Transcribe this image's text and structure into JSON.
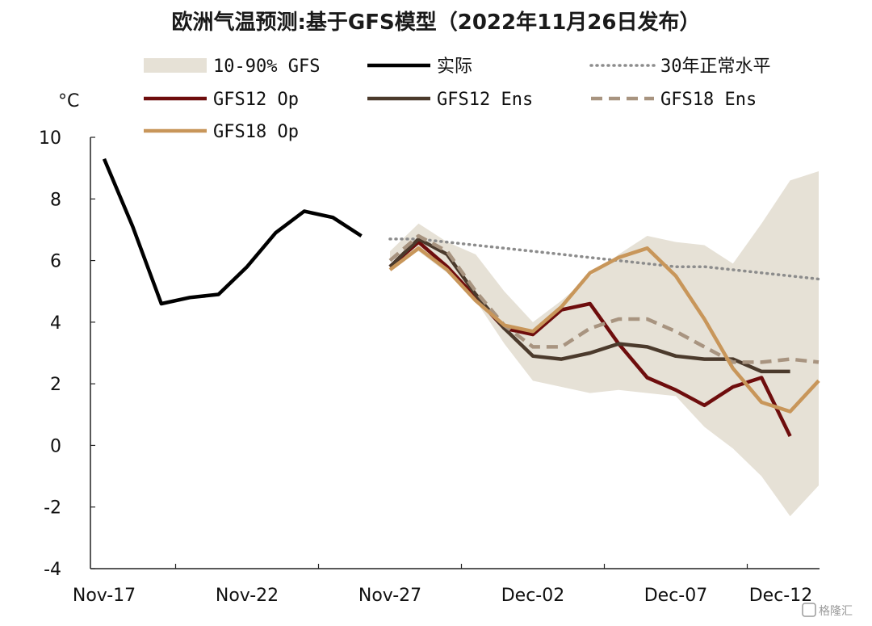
{
  "chart_data": {
    "type": "line",
    "title": "欧洲气温预测:基于GFS模型（2022年11月26日发布）",
    "ylabel": "°C",
    "ylim": [
      -4,
      10
    ],
    "yticks": [
      "10",
      "8",
      "6",
      "4",
      "2",
      "0",
      "-2",
      "-4"
    ],
    "xticks": [
      "Nov-17",
      "Nov-22",
      "Nov-27",
      "Dec-02",
      "Dec-07",
      "Dec-12"
    ],
    "xrange": [
      "2022-11-17",
      "2022-12-12"
    ],
    "grid": false,
    "legend_position": "top",
    "band": {
      "name": "10-90% GFS",
      "color": "#e6e1d6",
      "x": [
        "2022-11-27",
        "2022-11-28",
        "2022-11-29",
        "2022-11-30",
        "2022-12-01",
        "2022-12-02",
        "2022-12-03",
        "2022-12-04",
        "2022-12-05",
        "2022-12-06",
        "2022-12-07",
        "2022-12-08",
        "2022-12-09",
        "2022-12-10",
        "2022-12-11",
        "2022-12-12"
      ],
      "upper": [
        6.3,
        7.2,
        6.6,
        6.2,
        5.0,
        4.0,
        4.7,
        5.5,
        6.2,
        6.8,
        6.6,
        6.5,
        5.9,
        7.2,
        8.6,
        8.9
      ],
      "lower": [
        6.0,
        6.3,
        5.6,
        4.7,
        3.3,
        2.1,
        1.9,
        1.7,
        1.8,
        1.7,
        1.6,
        0.6,
        -0.1,
        -1.0,
        -2.3,
        -1.3
      ]
    },
    "series": [
      {
        "name": "实际",
        "color": "#000000",
        "style": "solid",
        "x": [
          "2022-11-17",
          "2022-11-18",
          "2022-11-19",
          "2022-11-20",
          "2022-11-21",
          "2022-11-22",
          "2022-11-23",
          "2022-11-24",
          "2022-11-25",
          "2022-11-26"
        ],
        "values": [
          9.3,
          7.1,
          4.6,
          4.8,
          4.9,
          5.8,
          6.9,
          7.6,
          7.4,
          6.8
        ]
      },
      {
        "name": "30年正常水平",
        "color": "#8c8c8c",
        "style": "dotted",
        "x": [
          "2022-11-27",
          "2022-11-28",
          "2022-11-29",
          "2022-11-30",
          "2022-12-01",
          "2022-12-02",
          "2022-12-03",
          "2022-12-04",
          "2022-12-05",
          "2022-12-06",
          "2022-12-07",
          "2022-12-08",
          "2022-12-09",
          "2022-12-10",
          "2022-12-11",
          "2022-12-12"
        ],
        "values": [
          6.7,
          6.7,
          6.6,
          6.5,
          6.4,
          6.3,
          6.2,
          6.1,
          6.0,
          5.9,
          5.8,
          5.8,
          5.7,
          5.6,
          5.5,
          5.4
        ]
      },
      {
        "name": "GFS12 Op",
        "color": "#6e0d0d",
        "style": "solid",
        "x": [
          "2022-11-27",
          "2022-11-28",
          "2022-11-29",
          "2022-11-30",
          "2022-12-01",
          "2022-12-02",
          "2022-12-03",
          "2022-12-04",
          "2022-12-05",
          "2022-12-06",
          "2022-12-07",
          "2022-12-08",
          "2022-12-09",
          "2022-12-10",
          "2022-12-11"
        ],
        "values": [
          5.8,
          6.6,
          5.8,
          4.8,
          3.8,
          3.6,
          4.4,
          4.6,
          3.3,
          2.2,
          1.8,
          1.3,
          1.9,
          2.2,
          0.3
        ]
      },
      {
        "name": "GFS12 Ens",
        "color": "#4b3a2c",
        "style": "solid",
        "x": [
          "2022-11-27",
          "2022-11-28",
          "2022-11-29",
          "2022-11-30",
          "2022-12-01",
          "2022-12-02",
          "2022-12-03",
          "2022-12-04",
          "2022-12-05",
          "2022-12-06",
          "2022-12-07",
          "2022-12-08",
          "2022-12-09",
          "2022-12-10",
          "2022-12-11"
        ],
        "values": [
          5.8,
          6.7,
          6.2,
          4.9,
          3.8,
          2.9,
          2.8,
          3.0,
          3.3,
          3.2,
          2.9,
          2.8,
          2.8,
          2.4,
          2.4
        ]
      },
      {
        "name": "GFS18 Ens",
        "color": "#a89480",
        "style": "dashed",
        "x": [
          "2022-11-27",
          "2022-11-28",
          "2022-11-29",
          "2022-11-30",
          "2022-12-01",
          "2022-12-02",
          "2022-12-03",
          "2022-12-04",
          "2022-12-05",
          "2022-12-06",
          "2022-12-07",
          "2022-12-08",
          "2022-12-09",
          "2022-12-10",
          "2022-12-11",
          "2022-12-12"
        ],
        "values": [
          6.0,
          6.8,
          6.3,
          5.0,
          3.9,
          3.2,
          3.2,
          3.8,
          4.1,
          4.1,
          3.7,
          3.2,
          2.7,
          2.7,
          2.8,
          2.7
        ]
      },
      {
        "name": "GFS18 Op",
        "color": "#c8965a",
        "style": "solid",
        "x": [
          "2022-11-27",
          "2022-11-28",
          "2022-11-29",
          "2022-11-30",
          "2022-12-01",
          "2022-12-02",
          "2022-12-03",
          "2022-12-04",
          "2022-12-05",
          "2022-12-06",
          "2022-12-07",
          "2022-12-08",
          "2022-12-09",
          "2022-12-10",
          "2022-12-11",
          "2022-12-12"
        ],
        "values": [
          5.7,
          6.4,
          5.7,
          4.7,
          3.9,
          3.7,
          4.5,
          5.6,
          6.1,
          6.4,
          5.5,
          4.1,
          2.5,
          1.4,
          1.1,
          2.1
        ]
      }
    ],
    "legend": [
      {
        "key": "band",
        "label": "10-90% GFS"
      },
      {
        "key": "series.0",
        "label": "实际"
      },
      {
        "key": "series.1",
        "label": "30年正常水平"
      },
      {
        "key": "series.2",
        "label": "GFS12 Op"
      },
      {
        "key": "series.3",
        "label": "GFS12 Ens"
      },
      {
        "key": "series.4",
        "label": "GFS18 Ens"
      },
      {
        "key": "series.5",
        "label": "GFS18 Op"
      }
    ]
  },
  "watermark": "格隆汇"
}
